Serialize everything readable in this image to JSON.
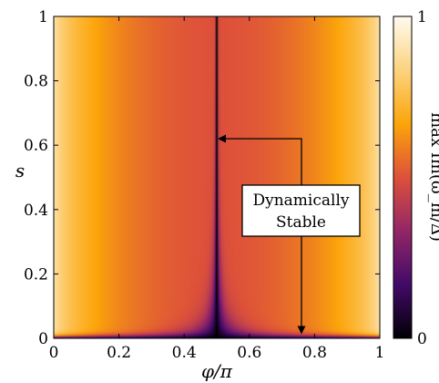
{
  "chart_data": {
    "type": "heatmap",
    "xlabel": "φ/π",
    "ylabel": "s",
    "colorbar_label": "max Im(ω_m/Δ)",
    "xlim": [
      0,
      1
    ],
    "ylim": [
      0,
      1
    ],
    "x_ticks": [
      {
        "v": 0,
        "label": "0"
      },
      {
        "v": 0.2,
        "label": "0.2"
      },
      {
        "v": 0.4,
        "label": "0.4"
      },
      {
        "v": 0.6,
        "label": "0.6"
      },
      {
        "v": 0.8,
        "label": "0.8"
      },
      {
        "v": 1,
        "label": "1"
      }
    ],
    "y_ticks": [
      {
        "v": 0,
        "label": "0"
      },
      {
        "v": 0.2,
        "label": "0.2"
      },
      {
        "v": 0.4,
        "label": "0.4"
      },
      {
        "v": 0.6,
        "label": "0.6"
      },
      {
        "v": 0.8,
        "label": "0.8"
      },
      {
        "v": 1,
        "label": "1"
      }
    ],
    "colorbar": {
      "range": [
        0,
        1
      ],
      "ticks": [
        {
          "v": 0,
          "label": "0"
        },
        {
          "v": 1,
          "label": "1"
        }
      ],
      "colormap": [
        "#000004",
        "#420a68",
        "#932667",
        "#dd513a",
        "#fca50a",
        "#fcd37f",
        "#fffbf0"
      ]
    },
    "stable_line_phi": 0.5,
    "annotation": {
      "lines": [
        "Dynamically",
        "Stable"
      ],
      "arrow_targets": [
        {
          "x": 0.5,
          "y": 0.62
        },
        {
          "x": 0.77,
          "y": 0.01
        }
      ]
    }
  }
}
